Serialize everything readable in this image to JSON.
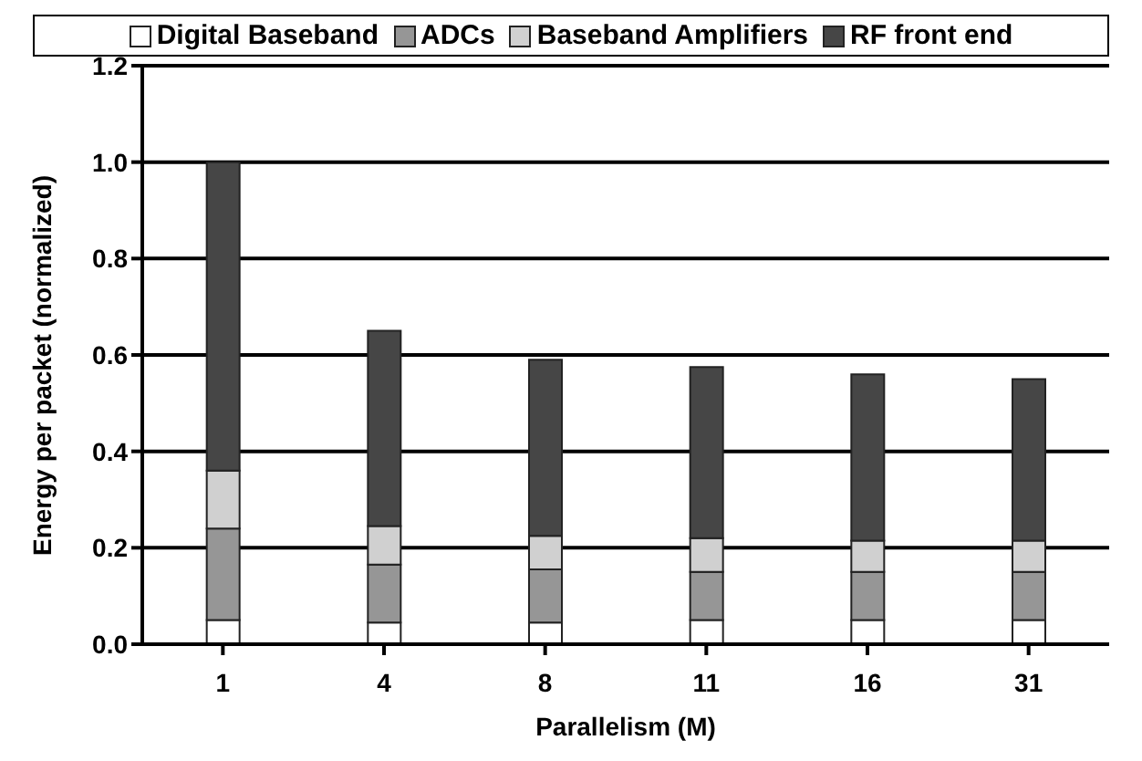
{
  "chart_data": {
    "type": "bar",
    "stacked": true,
    "xlabel": "Parallelism (M)",
    "ylabel": "Energy per packet (normalized)",
    "categories": [
      "1",
      "4",
      "8",
      "11",
      "16",
      "31"
    ],
    "series": [
      {
        "name": "Digital Baseband",
        "color": "#ffffff",
        "values": [
          0.05,
          0.045,
          0.045,
          0.05,
          0.05,
          0.05
        ]
      },
      {
        "name": "ADCs",
        "color": "#969696",
        "values": [
          0.19,
          0.12,
          0.11,
          0.1,
          0.1,
          0.1
        ]
      },
      {
        "name": "Baseband Amplifiers",
        "color": "#d0d0d0",
        "values": [
          0.12,
          0.08,
          0.07,
          0.07,
          0.065,
          0.065
        ]
      },
      {
        "name": "RF front end",
        "color": "#464646",
        "values": [
          0.64,
          0.405,
          0.365,
          0.355,
          0.345,
          0.335
        ]
      }
    ],
    "ylim": [
      0,
      1.2
    ],
    "yticks": [
      {
        "value": 0,
        "label": "0.0"
      },
      0.2,
      0.4,
      0.6,
      0.8,
      {
        "value": 1,
        "label": "1.0"
      },
      1.2
    ],
    "grid": "y",
    "legend": "top"
  }
}
